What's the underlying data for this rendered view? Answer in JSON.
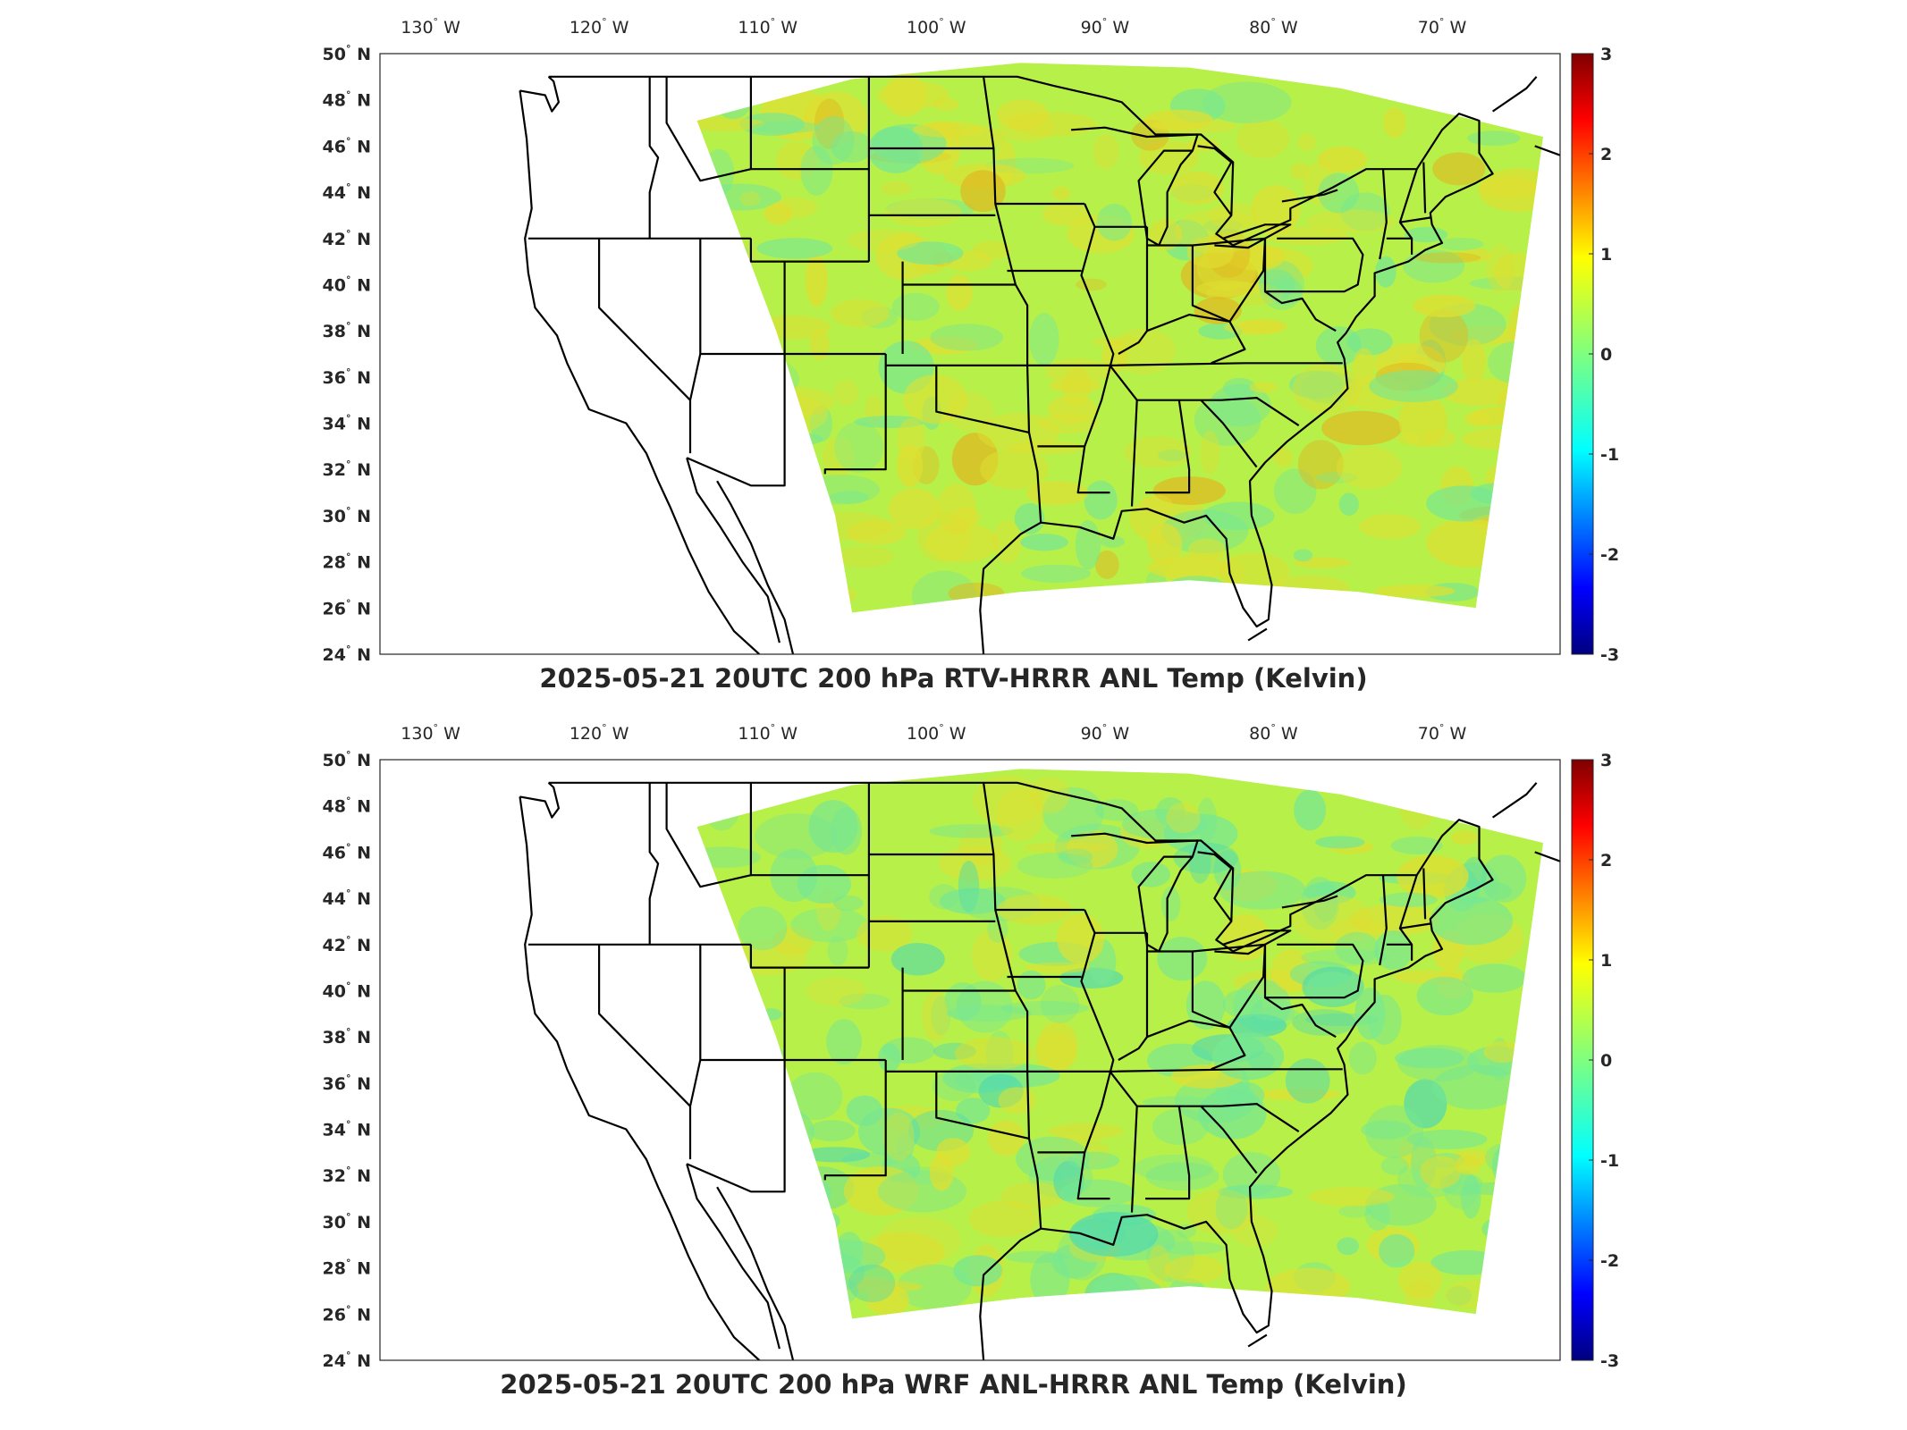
{
  "figure": {
    "panels": [
      {
        "title": "2025-05-21 20UTC 200 hPa RTV-HRRR ANL Temp (Kelvin)",
        "lon_ticks": [
          "130",
          "120",
          "110",
          "100",
          "90",
          "80",
          "70"
        ],
        "lon_hemisphere": "W",
        "lat_ticks": [
          "50",
          "48",
          "46",
          "44",
          "42",
          "40",
          "38",
          "36",
          "34",
          "32",
          "30",
          "28",
          "26",
          "24"
        ],
        "lat_hemisphere": "N",
        "colorbar": {
          "min": -3,
          "max": 3,
          "ticks": [
            "3",
            "2",
            "1",
            "0",
            "-1",
            "-2",
            "-3"
          ],
          "colormap": "jet"
        },
        "field_tint": "warm"
      },
      {
        "title": "2025-05-21 20UTC 200 hPa WRF ANL-HRRR ANL Temp (Kelvin)",
        "lon_ticks": [
          "130",
          "120",
          "110",
          "100",
          "90",
          "80",
          "70"
        ],
        "lon_hemisphere": "W",
        "lat_ticks": [
          "50",
          "48",
          "46",
          "44",
          "42",
          "40",
          "38",
          "36",
          "34",
          "32",
          "30",
          "28",
          "26",
          "24"
        ],
        "lat_hemisphere": "N",
        "colorbar": {
          "min": -3,
          "max": 3,
          "ticks": [
            "3",
            "2",
            "1",
            "0",
            "-1",
            "-2",
            "-3"
          ],
          "colormap": "jet"
        },
        "field_tint": "cool"
      }
    ]
  },
  "colors": {
    "axes": "#262626",
    "field_base": "#b8f04a",
    "field_warm": "#ffd21e",
    "field_cool": "#40e0d0",
    "field_hot": "#ff8c00"
  }
}
